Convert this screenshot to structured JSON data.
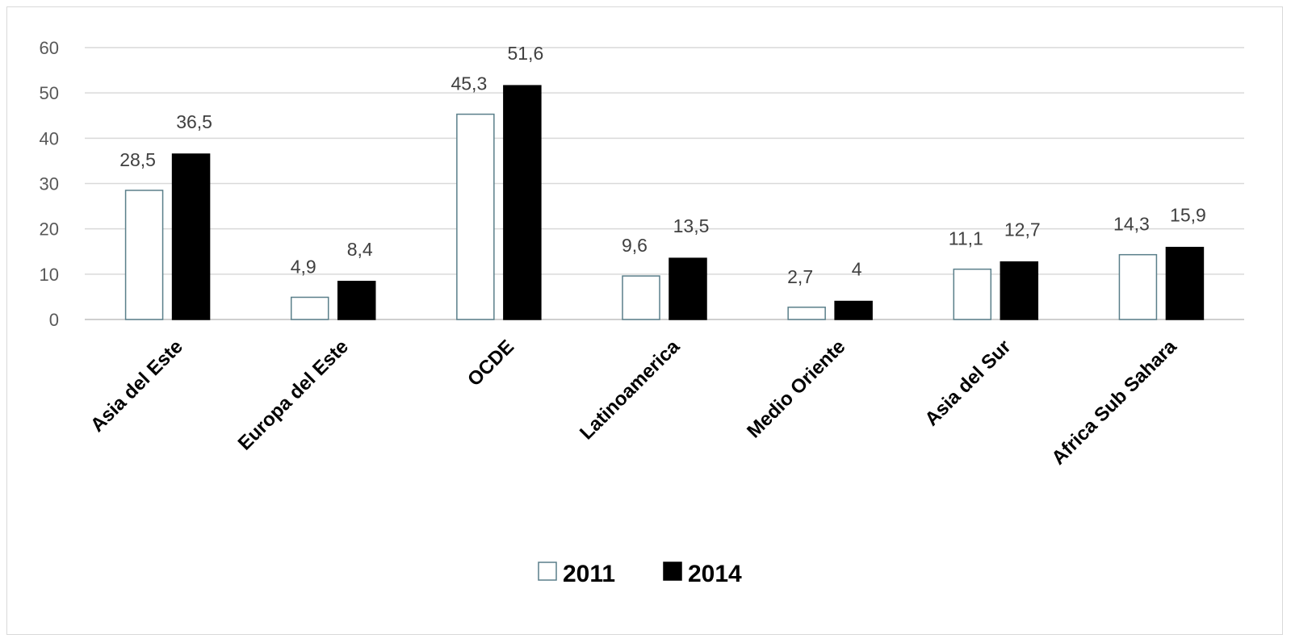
{
  "chart_data": {
    "type": "bar",
    "categories": [
      "Asia del Este",
      "Europa del Este",
      "OCDE",
      "Latinoamerica",
      "Medio Oriente",
      "Asia del Sur",
      "Africa Sub Sahara"
    ],
    "series": [
      {
        "name": "2011",
        "values": [
          28.5,
          4.9,
          45.3,
          9.6,
          2.7,
          11.1,
          14.3
        ],
        "labels": [
          "28,5",
          "4,9",
          "45,3",
          "9,6",
          "2,7",
          "11,1",
          "14,3"
        ],
        "fill": "#ffffff",
        "stroke": "#5a7f8a"
      },
      {
        "name": "2014",
        "values": [
          36.5,
          8.4,
          51.6,
          13.5,
          4,
          12.7,
          15.9
        ],
        "labels": [
          "36,5",
          "8,4",
          "51,6",
          "13,5",
          "4",
          "12,7",
          "15,9"
        ],
        "fill": "#000000",
        "stroke": "#000000"
      }
    ],
    "ylim": [
      0,
      60
    ],
    "yticks": [
      0,
      10,
      20,
      30,
      40,
      50,
      60
    ],
    "grid": true,
    "legend_position": "bottom",
    "xlabel": "",
    "ylabel": "",
    "title": ""
  }
}
